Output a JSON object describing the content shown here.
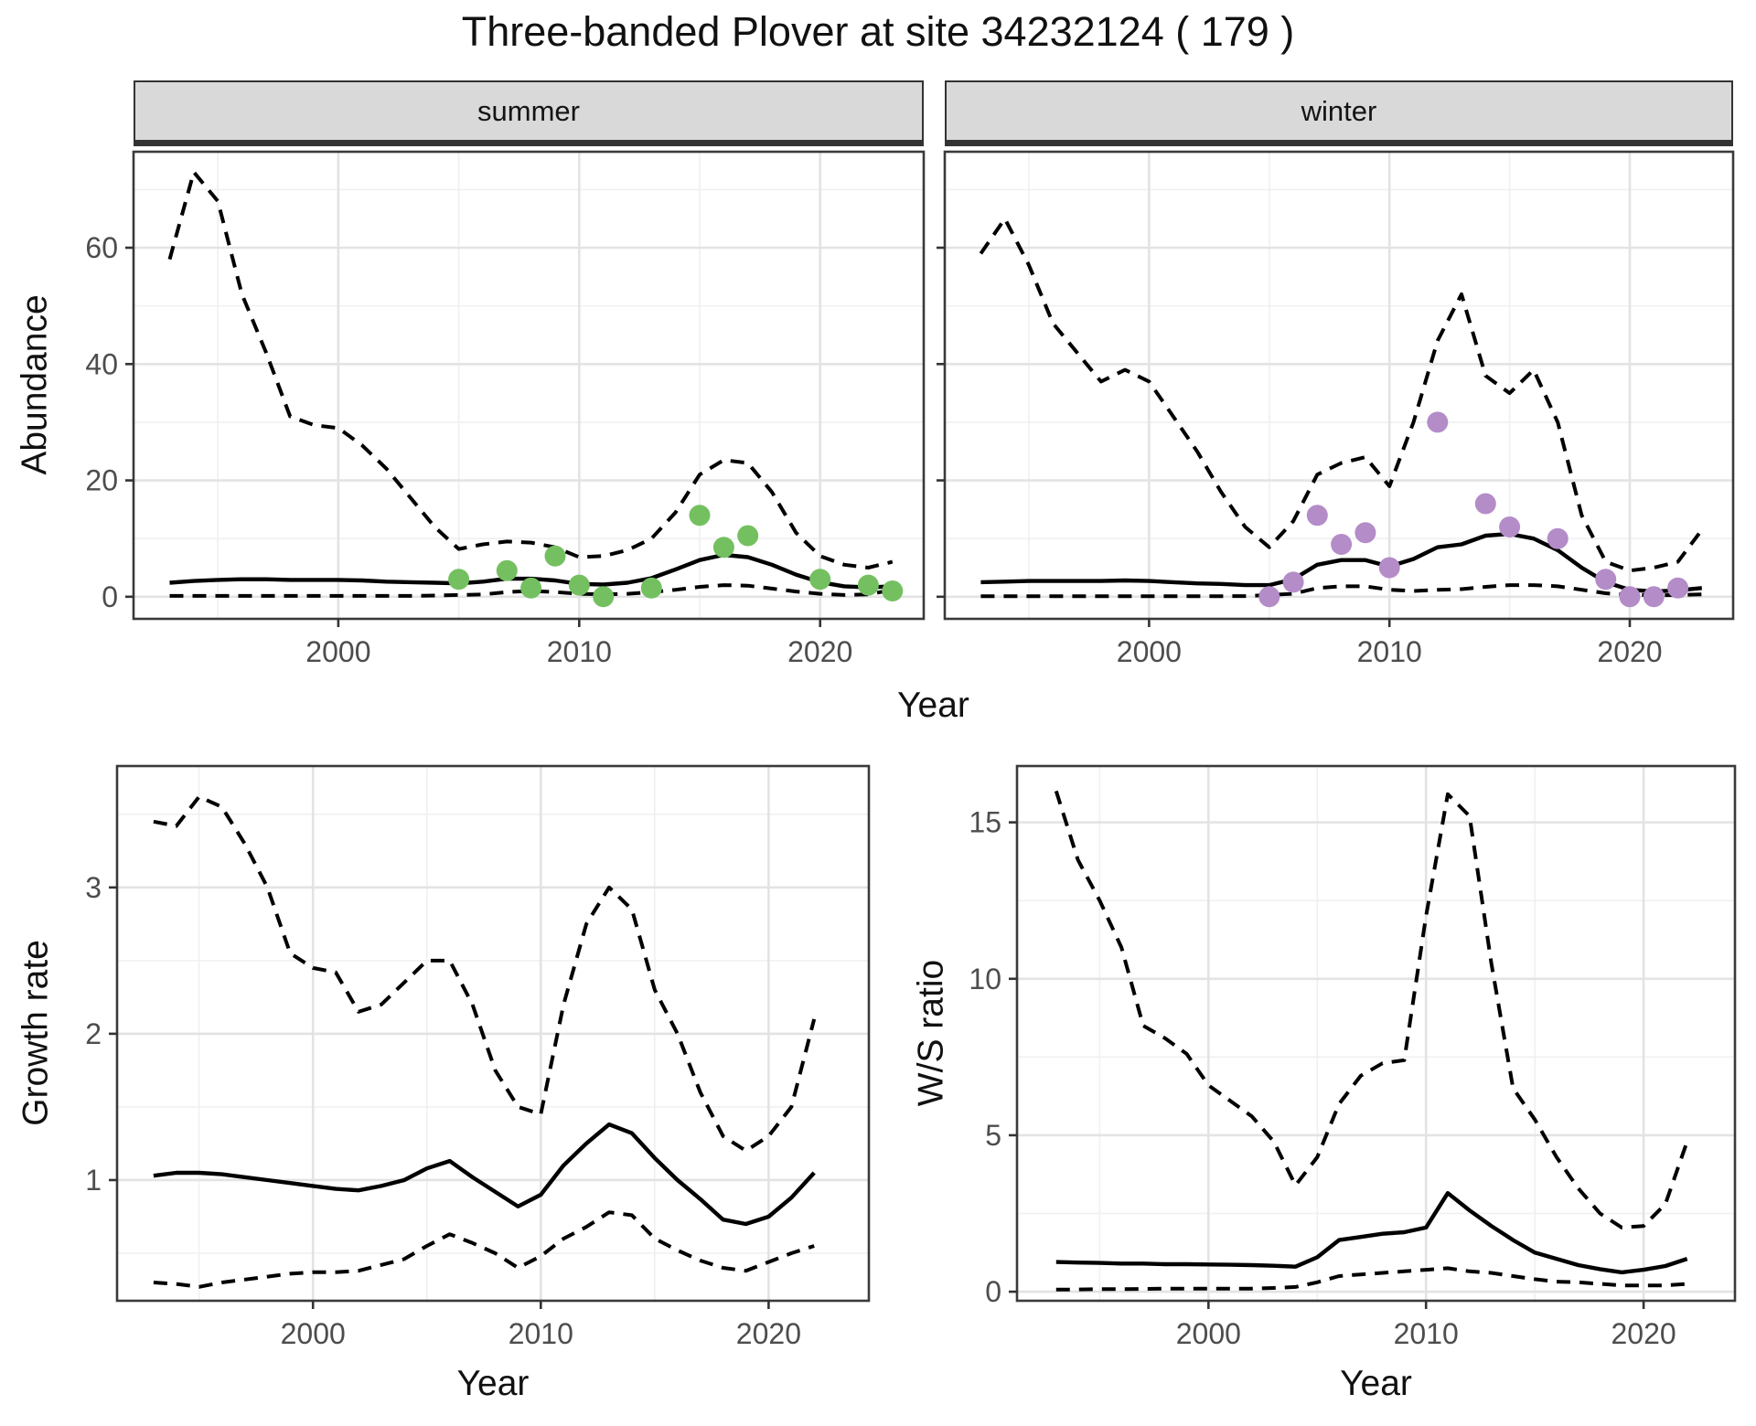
{
  "title": "Three-banded Plover at site 34232124 ( 179 )",
  "facets": {
    "summer": "summer",
    "winter": "winter"
  },
  "axes": {
    "abundance_label": "Abundance",
    "growth_label": "Growth rate",
    "ws_label": "W/S ratio",
    "year_label": "Year"
  },
  "colors": {
    "summer_points": "#74c061",
    "winter_points": "#b48cc8",
    "line": "#000000",
    "strip_bg": "#d9d9d9",
    "strip_border": "#333333",
    "panel_border": "#3a3a3a",
    "grid_major": "#e3e3e3",
    "grid_minor": "#f0f0f0",
    "tick_text": "#4d4d4d"
  },
  "chart_data": [
    {
      "type": "line",
      "facet": "summer",
      "ylabel": "Abundance",
      "xlabel": "Year",
      "x": [
        1993,
        1994,
        1995,
        1996,
        1997,
        1998,
        1999,
        2000,
        2001,
        2002,
        2003,
        2004,
        2005,
        2006,
        2007,
        2008,
        2009,
        2010,
        2011,
        2012,
        2013,
        2014,
        2015,
        2016,
        2017,
        2018,
        2019,
        2020,
        2021,
        2022,
        2023
      ],
      "series": [
        {
          "name": "upper_ci",
          "style": "dashed",
          "values": [
            58,
            73,
            68,
            52,
            42,
            31,
            29.5,
            29,
            26,
            22,
            17,
            12,
            8.2,
            9,
            9.5,
            9.3,
            8.5,
            6.8,
            7,
            8,
            10,
            14.5,
            21,
            23.5,
            23,
            18,
            11,
            7,
            5.5,
            5,
            6
          ]
        },
        {
          "name": "mean",
          "style": "solid",
          "values": [
            2.4,
            2.7,
            2.9,
            3,
            3,
            2.9,
            2.9,
            2.9,
            2.8,
            2.6,
            2.5,
            2.4,
            2.3,
            2.6,
            3.1,
            3.1,
            2.8,
            2.2,
            2.1,
            2.4,
            3.2,
            4.7,
            6.3,
            7.2,
            6.8,
            5.5,
            3.8,
            2.5,
            1.8,
            1.6,
            1.8
          ]
        },
        {
          "name": "lower_ci",
          "style": "dashed",
          "values": [
            0.15,
            0.15,
            0.15,
            0.15,
            0.15,
            0.15,
            0.15,
            0.15,
            0.15,
            0.15,
            0.15,
            0.2,
            0.3,
            0.4,
            0.8,
            1,
            0.8,
            0.5,
            0.4,
            0.5,
            0.8,
            1.2,
            1.7,
            2,
            1.9,
            1.4,
            0.9,
            0.5,
            0.3,
            0.4,
            1.2
          ]
        }
      ],
      "points": {
        "name": "observed-summer",
        "color": "#74c061",
        "x": [
          2005,
          2007,
          2008,
          2009,
          2010,
          2011,
          2013,
          2015,
          2016,
          2017,
          2020,
          2022,
          2023
        ],
        "y": [
          3,
          4.5,
          1.5,
          7,
          2,
          0,
          1.5,
          14,
          8.5,
          10.5,
          3,
          2,
          1
        ]
      },
      "x_ticks": [
        2000,
        2010,
        2020
      ],
      "y_ticks": [
        0,
        20,
        40,
        60
      ],
      "xlim": [
        1991.5,
        2024.3
      ],
      "ylim": [
        -3.8,
        76.5
      ],
      "grid": true,
      "legend": "none"
    },
    {
      "type": "line",
      "facet": "winter",
      "ylabel": "Abundance",
      "xlabel": "Year",
      "x": [
        1993,
        1994,
        1995,
        1996,
        1997,
        1998,
        1999,
        2000,
        2001,
        2002,
        2003,
        2004,
        2005,
        2006,
        2007,
        2008,
        2009,
        2010,
        2011,
        2012,
        2013,
        2014,
        2015,
        2016,
        2017,
        2018,
        2019,
        2020,
        2021,
        2022,
        2023
      ],
      "series": [
        {
          "name": "upper_ci",
          "style": "dashed",
          "values": [
            59,
            65,
            57,
            47,
            42,
            37,
            39,
            37,
            31,
            25,
            18,
            12,
            8.5,
            13,
            21,
            23,
            24,
            19,
            30,
            44,
            52,
            38,
            35,
            39,
            30,
            14,
            6,
            4.5,
            5,
            6,
            11.5
          ]
        },
        {
          "name": "mean",
          "style": "solid",
          "values": [
            2.5,
            2.6,
            2.7,
            2.7,
            2.7,
            2.7,
            2.8,
            2.7,
            2.5,
            2.3,
            2.2,
            2,
            2,
            3,
            5.5,
            6.3,
            6.3,
            5.2,
            6.5,
            8.5,
            9,
            10.5,
            10.8,
            10,
            8,
            5,
            2.5,
            1.2,
            0.9,
            1.1,
            1.5
          ]
        },
        {
          "name": "lower_ci",
          "style": "dashed",
          "values": [
            0.1,
            0.1,
            0.1,
            0.1,
            0.1,
            0.1,
            0.1,
            0.1,
            0.1,
            0.1,
            0.1,
            0.12,
            0.3,
            0.5,
            1.5,
            1.8,
            1.8,
            1.2,
            1,
            1.2,
            1.3,
            1.7,
            2,
            2,
            1.8,
            1.2,
            0.6,
            0.3,
            0.25,
            0.3,
            0.4
          ]
        }
      ],
      "points": {
        "name": "observed-winter",
        "color": "#b48cc8",
        "x": [
          2005,
          2006,
          2007,
          2008,
          2009,
          2010,
          2012,
          2014,
          2015,
          2017,
          2019,
          2020,
          2021,
          2022
        ],
        "y": [
          0,
          2.5,
          14,
          9,
          11,
          5,
          30,
          16,
          12,
          10,
          3,
          0,
          0,
          1.5
        ]
      },
      "x_ticks": [
        2000,
        2010,
        2020
      ],
      "y_ticks": [
        0,
        20,
        40,
        60
      ],
      "xlim": [
        1991.5,
        2024.3
      ],
      "ylim": [
        -3.8,
        76.5
      ],
      "grid": true,
      "legend": "none"
    },
    {
      "type": "line",
      "facet": "",
      "ylabel": "Growth rate",
      "xlabel": "Year",
      "x": [
        1993,
        1994,
        1995,
        1996,
        1997,
        1998,
        1999,
        2000,
        2001,
        2002,
        2003,
        2004,
        2005,
        2006,
        2007,
        2008,
        2009,
        2010,
        2011,
        2012,
        2013,
        2014,
        2015,
        2016,
        2017,
        2018,
        2019,
        2020,
        2021,
        2022
      ],
      "series": [
        {
          "name": "upper_ci",
          "style": "dashed",
          "values": [
            3.45,
            3.42,
            3.62,
            3.55,
            3.3,
            3,
            2.55,
            2.45,
            2.42,
            2.15,
            2.2,
            2.35,
            2.5,
            2.5,
            2.2,
            1.75,
            1.5,
            1.45,
            2.2,
            2.75,
            3,
            2.85,
            2.3,
            2,
            1.6,
            1.3,
            1.2,
            1.3,
            1.5,
            2.1
          ]
        },
        {
          "name": "mean",
          "style": "solid",
          "values": [
            1.03,
            1.05,
            1.05,
            1.04,
            1.02,
            1,
            0.98,
            0.96,
            0.94,
            0.93,
            0.96,
            1,
            1.08,
            1.13,
            1.02,
            0.92,
            0.82,
            0.9,
            1.1,
            1.25,
            1.38,
            1.32,
            1.15,
            1,
            0.87,
            0.73,
            0.7,
            0.75,
            0.88,
            1.05
          ]
        },
        {
          "name": "lower_ci",
          "style": "dashed",
          "values": [
            0.3,
            0.29,
            0.27,
            0.3,
            0.32,
            0.34,
            0.36,
            0.37,
            0.37,
            0.38,
            0.42,
            0.46,
            0.55,
            0.63,
            0.57,
            0.5,
            0.4,
            0.48,
            0.6,
            0.68,
            0.78,
            0.76,
            0.6,
            0.52,
            0.45,
            0.4,
            0.38,
            0.44,
            0.5,
            0.55
          ]
        }
      ],
      "x_ticks": [
        2000,
        2010,
        2020
      ],
      "y_ticks": [
        1,
        2,
        3
      ],
      "xlim": [
        1991.4,
        2024.4
      ],
      "ylim": [
        0.175,
        3.83
      ],
      "grid": true,
      "legend": "none"
    },
    {
      "type": "line",
      "facet": "",
      "ylabel": "W/S ratio",
      "xlabel": "Year",
      "x": [
        1993,
        1994,
        1995,
        1996,
        1997,
        1998,
        1999,
        2000,
        2001,
        2002,
        2003,
        2004,
        2005,
        2006,
        2007,
        2008,
        2009,
        2010,
        2011,
        2012,
        2013,
        2014,
        2015,
        2016,
        2017,
        2018,
        2019,
        2020,
        2021,
        2022
      ],
      "series": [
        {
          "name": "upper_ci",
          "style": "dashed",
          "values": [
            16,
            13.8,
            12.5,
            11,
            8.5,
            8.1,
            7.6,
            6.6,
            6.1,
            5.6,
            4.8,
            3.4,
            4.3,
            6,
            6.9,
            7.3,
            7.4,
            12,
            15.9,
            15.2,
            10.5,
            6.5,
            5.5,
            4.3,
            3.3,
            2.5,
            2.05,
            2.1,
            2.8,
            4.8
          ]
        },
        {
          "name": "mean",
          "style": "solid",
          "values": [
            0.95,
            0.93,
            0.92,
            0.9,
            0.9,
            0.88,
            0.88,
            0.87,
            0.86,
            0.85,
            0.83,
            0.8,
            1.1,
            1.65,
            1.75,
            1.85,
            1.9,
            2.05,
            3.15,
            2.6,
            2.1,
            1.65,
            1.25,
            1.05,
            0.85,
            0.72,
            0.62,
            0.7,
            0.82,
            1.05
          ]
        },
        {
          "name": "lower_ci",
          "style": "dashed",
          "values": [
            0.07,
            0.07,
            0.08,
            0.08,
            0.09,
            0.1,
            0.1,
            0.1,
            0.1,
            0.1,
            0.12,
            0.15,
            0.3,
            0.5,
            0.55,
            0.6,
            0.65,
            0.7,
            0.75,
            0.65,
            0.6,
            0.5,
            0.4,
            0.32,
            0.3,
            0.25,
            0.2,
            0.2,
            0.2,
            0.25
          ]
        }
      ],
      "x_ticks": [
        2000,
        2010,
        2020
      ],
      "y_ticks": [
        0,
        5,
        10,
        15
      ],
      "xlim": [
        1991.2,
        2024.2
      ],
      "ylim": [
        -0.29,
        16.8
      ],
      "grid": true,
      "legend": "none"
    }
  ]
}
